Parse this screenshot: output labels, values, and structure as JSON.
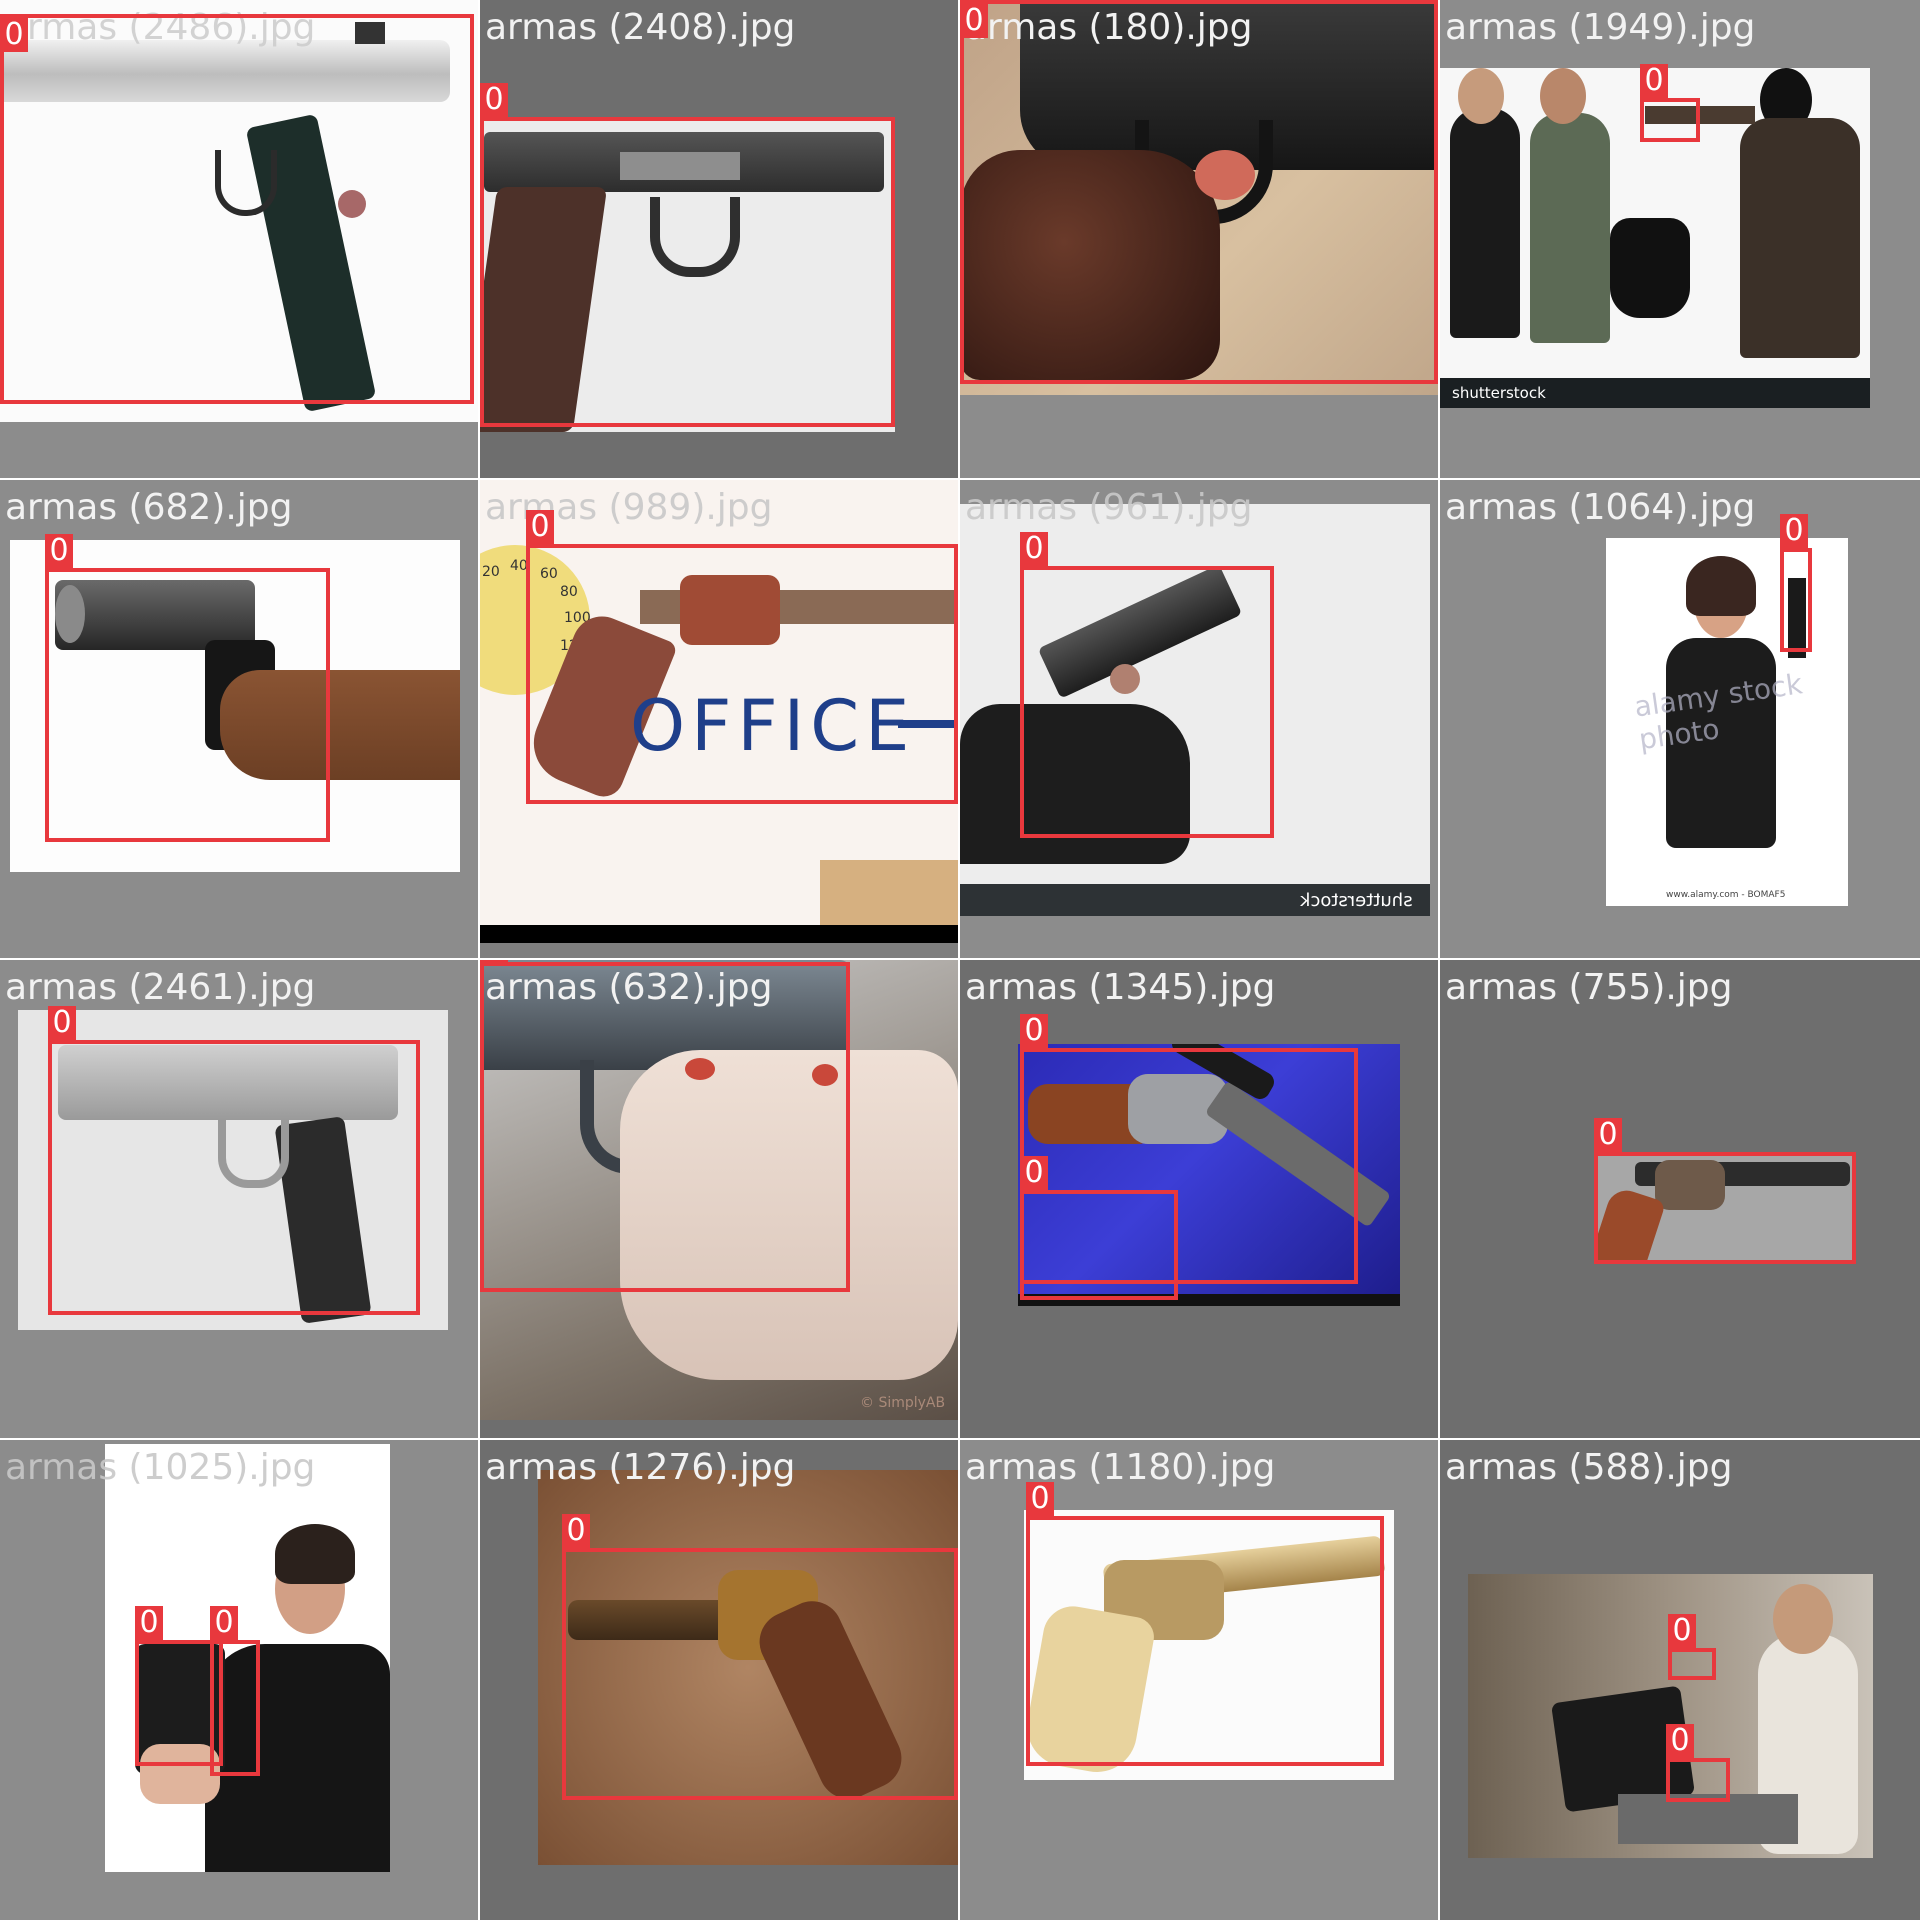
{
  "colors": {
    "box": "#e8383d",
    "box_label_text": "#ffffff",
    "filename_text": "#f2f2f2",
    "separator": "#ffffff"
  },
  "tiles": [
    {
      "filename": "armas (2486).jpg",
      "boxes": [
        {
          "class_label": "0"
        }
      ]
    },
    {
      "filename": "armas (2408).jpg",
      "boxes": [
        {
          "class_label": "0"
        }
      ]
    },
    {
      "filename": "armas (180).jpg",
      "boxes": [
        {
          "class_label": "0"
        }
      ]
    },
    {
      "filename": "armas (1949).jpg",
      "boxes": [
        {
          "class_label": "0"
        }
      ],
      "watermark": "shutterstock"
    },
    {
      "filename": "armas (682).jpg",
      "boxes": [
        {
          "class_label": "0"
        }
      ]
    },
    {
      "filename": "armas (989).jpg",
      "boxes": [
        {
          "class_label": "0"
        }
      ],
      "sign_text": "OFFICE",
      "gauge_labels": [
        "20",
        "40",
        "60",
        "80",
        "100",
        "120"
      ]
    },
    {
      "filename": "armas (961).jpg",
      "boxes": [
        {
          "class_label": "0"
        }
      ],
      "watermark": "shutterstock"
    },
    {
      "filename": "armas (1064).jpg",
      "boxes": [
        {
          "class_label": "0"
        }
      ],
      "watermark": "alamy stock photo",
      "credit": "www.alamy.com - BOMAF5"
    },
    {
      "filename": "armas (2461).jpg",
      "boxes": [
        {
          "class_label": "0"
        }
      ]
    },
    {
      "filename": "armas (632).jpg",
      "boxes": [
        {
          "class_label": "0"
        }
      ],
      "watermark": "© SimplyAB"
    },
    {
      "filename": "armas (1345).jpg",
      "boxes": [
        {
          "class_label": "0"
        },
        {
          "class_label": "0"
        }
      ]
    },
    {
      "filename": "armas (755).jpg",
      "boxes": [
        {
          "class_label": "0"
        }
      ]
    },
    {
      "filename": "armas (1025).jpg",
      "boxes": [
        {
          "class_label": "0"
        },
        {
          "class_label": "0"
        }
      ]
    },
    {
      "filename": "armas (1276).jpg",
      "boxes": [
        {
          "class_label": "0"
        }
      ]
    },
    {
      "filename": "armas (1180).jpg",
      "boxes": [
        {
          "class_label": "0"
        }
      ]
    },
    {
      "filename": "armas (588).jpg",
      "boxes": [
        {
          "class_label": "0"
        },
        {
          "class_label": "0"
        }
      ]
    }
  ]
}
